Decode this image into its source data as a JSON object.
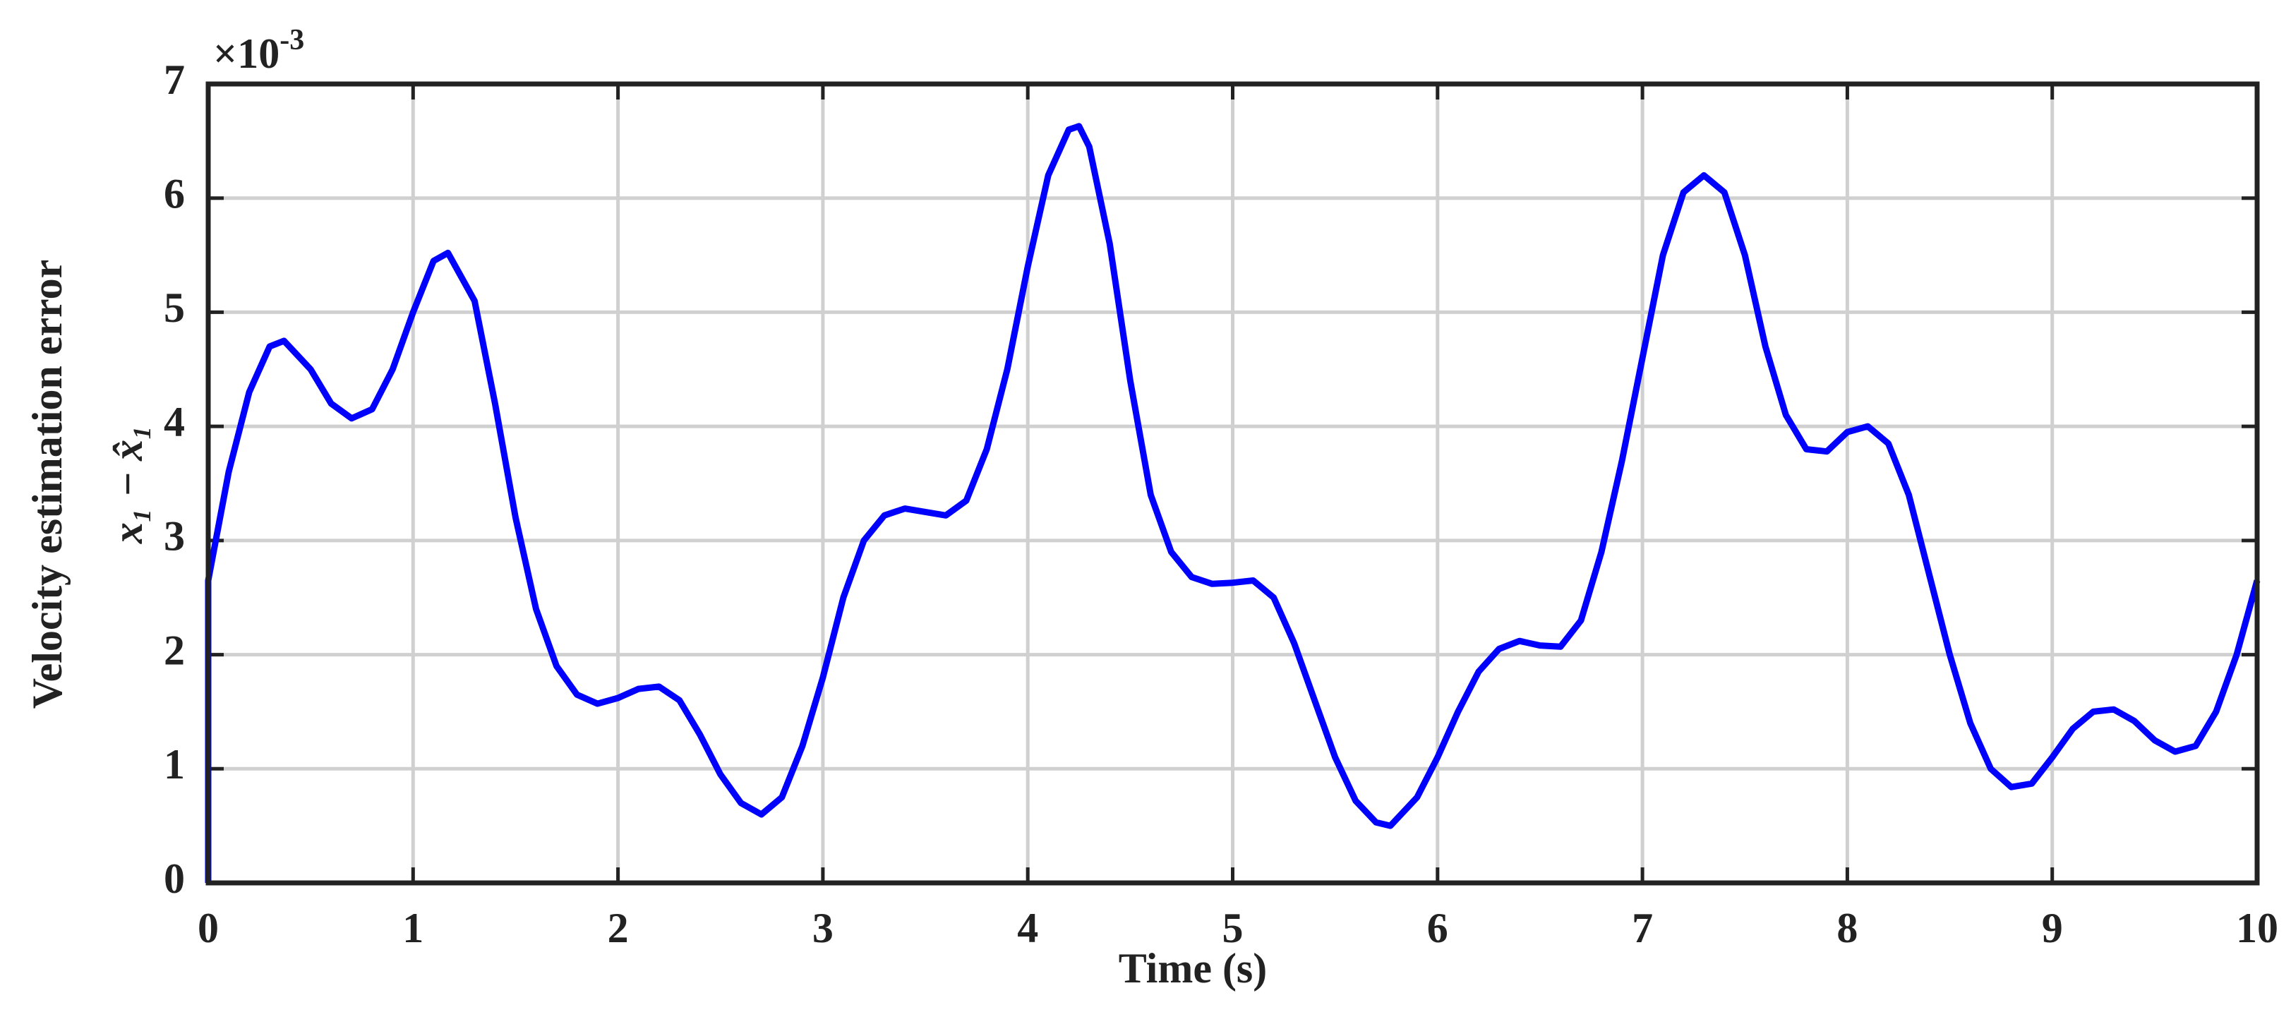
{
  "chart_data": {
    "type": "line",
    "xlabel": "Time (s)",
    "ylabel": "Velocity estimation error",
    "ylabel2": "x₁ − x̂₁",
    "y_multiplier": "×10",
    "y_exponent": "-3",
    "x": [
      0,
      0,
      0.1,
      0.2,
      0.3,
      0.37,
      0.5,
      0.6,
      0.7,
      0.8,
      0.9,
      1.0,
      1.1,
      1.17,
      1.3,
      1.4,
      1.5,
      1.6,
      1.7,
      1.8,
      1.9,
      2.0,
      2.1,
      2.2,
      2.3,
      2.4,
      2.5,
      2.6,
      2.7,
      2.8,
      2.9,
      3.0,
      3.1,
      3.2,
      3.3,
      3.4,
      3.5,
      3.6,
      3.7,
      3.8,
      3.9,
      4.0,
      4.1,
      4.2,
      4.25,
      4.3,
      4.4,
      4.5,
      4.6,
      4.7,
      4.8,
      4.9,
      5.0,
      5.1,
      5.2,
      5.3,
      5.4,
      5.5,
      5.6,
      5.7,
      5.77,
      5.9,
      6.0,
      6.1,
      6.2,
      6.3,
      6.4,
      6.5,
      6.6,
      6.7,
      6.8,
      6.9,
      7.0,
      7.1,
      7.2,
      7.3,
      7.4,
      7.5,
      7.6,
      7.7,
      7.8,
      7.9,
      8.0,
      8.1,
      8.2,
      8.3,
      8.4,
      8.5,
      8.6,
      8.7,
      8.8,
      8.9,
      9.0,
      9.1,
      9.2,
      9.3,
      9.4,
      9.5,
      9.6,
      9.7,
      9.8,
      9.9,
      10
    ],
    "series": [
      {
        "color": "#0000ff",
        "values": [
          0,
          2.65,
          3.6,
          4.3,
          4.7,
          4.75,
          4.5,
          4.2,
          4.07,
          4.15,
          4.5,
          5.0,
          5.45,
          5.52,
          5.1,
          4.2,
          3.2,
          2.4,
          1.9,
          1.65,
          1.57,
          1.62,
          1.7,
          1.72,
          1.6,
          1.3,
          0.95,
          0.7,
          0.6,
          0.75,
          1.2,
          1.8,
          2.5,
          3.0,
          3.22,
          3.28,
          3.25,
          3.22,
          3.35,
          3.8,
          4.5,
          5.4,
          6.2,
          6.6,
          6.63,
          6.45,
          5.6,
          4.4,
          3.4,
          2.9,
          2.68,
          2.62,
          2.63,
          2.65,
          2.5,
          2.1,
          1.6,
          1.1,
          0.72,
          0.53,
          0.5,
          0.75,
          1.1,
          1.5,
          1.85,
          2.05,
          2.12,
          2.08,
          2.07,
          2.3,
          2.9,
          3.7,
          4.6,
          5.5,
          6.05,
          6.2,
          6.05,
          5.5,
          4.7,
          4.1,
          3.8,
          3.78,
          3.95,
          4.0,
          3.85,
          3.4,
          2.7,
          2.0,
          1.4,
          1.0,
          0.84,
          0.87,
          1.1,
          1.35,
          1.5,
          1.52,
          1.42,
          1.25,
          1.15,
          1.2,
          1.5,
          2.0,
          2.65
        ]
      }
    ],
    "xlim": [
      0,
      10
    ],
    "xticks": [
      0,
      1,
      2,
      3,
      4,
      5,
      6,
      7,
      8,
      9,
      10
    ],
    "ylim": [
      0,
      7
    ],
    "yticks": [
      0,
      1,
      2,
      3,
      4,
      5,
      6,
      7
    ],
    "grid": true
  }
}
